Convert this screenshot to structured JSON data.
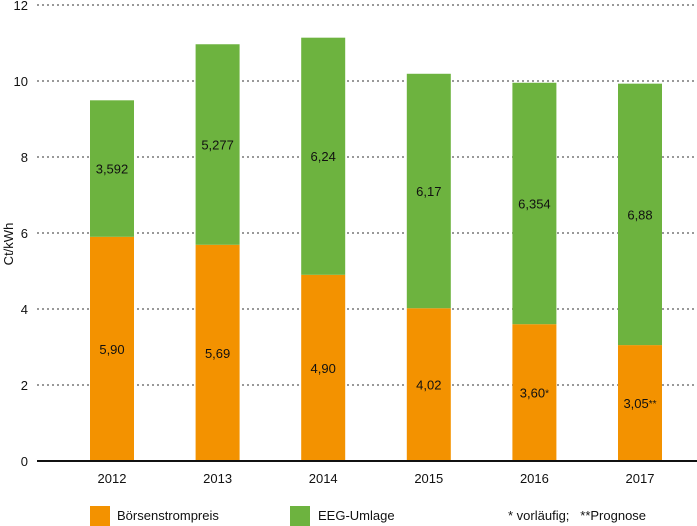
{
  "chart_data": {
    "type": "bar",
    "stacked": true,
    "categories": [
      "2012",
      "2013",
      "2014",
      "2015",
      "2016",
      "2017"
    ],
    "series": [
      {
        "name": "Börsenstrompreis",
        "color": "#f39200",
        "values": [
          5.9,
          5.69,
          4.9,
          4.02,
          3.6,
          3.05
        ],
        "labels": [
          "5,90",
          "5,69",
          "4,90",
          "4,02",
          "3,60",
          "3,05"
        ],
        "label_suffixes": [
          "",
          "",
          "",
          "",
          "*",
          "**"
        ]
      },
      {
        "name": "EEG-Umlage",
        "color": "#6db33f",
        "values": [
          3.592,
          5.277,
          6.24,
          6.17,
          6.354,
          6.88
        ],
        "labels": [
          "3,592",
          "5,277",
          "6,24",
          "6,17",
          "6,354",
          "6,88"
        ],
        "label_suffixes": [
          "",
          "",
          "",
          "",
          "",
          ""
        ]
      }
    ],
    "ylabel": "Ct/kWh",
    "xlabel": "",
    "ylim": [
      0,
      12
    ],
    "yticks": [
      0,
      2,
      4,
      6,
      8,
      10,
      12
    ],
    "grid": true,
    "legend": [
      "Börsenstrompreis",
      "EEG-Umlage"
    ],
    "footnote": "* vorläufig;   **Prognose"
  }
}
